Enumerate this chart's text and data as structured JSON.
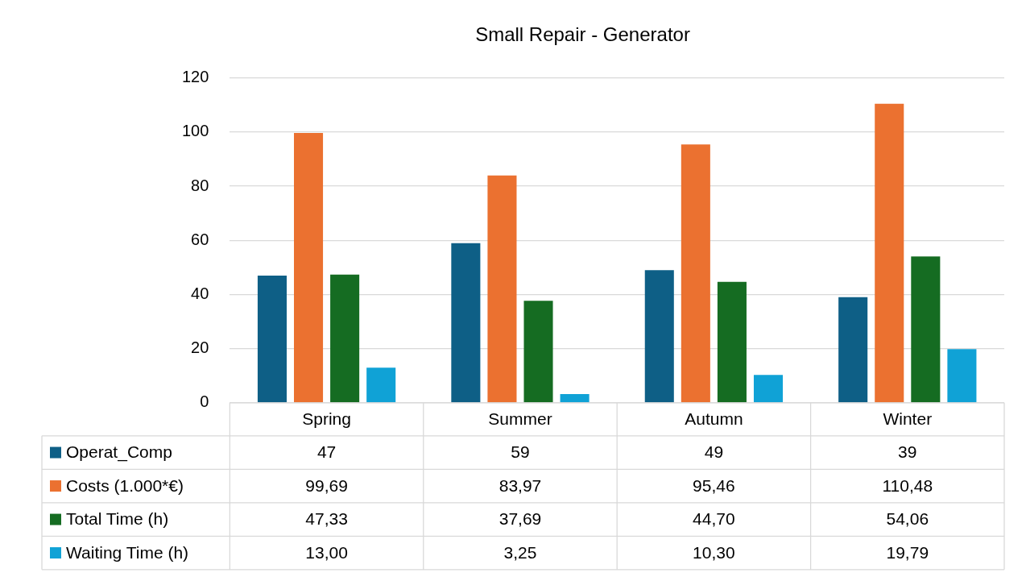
{
  "chart_data": {
    "type": "bar",
    "title": "Small Repair - Generator",
    "categories": [
      "Spring",
      "Summer",
      "Autumn",
      "Winter"
    ],
    "series": [
      {
        "name": "Operat_Comp",
        "color": "#0e5f86",
        "values": [
          47,
          59,
          49,
          39
        ],
        "value_labels": [
          "47",
          "59",
          "49",
          "39"
        ]
      },
      {
        "name": "Costs (1.000*€)",
        "color": "#eb7130",
        "values": [
          99.69,
          83.97,
          95.46,
          110.48
        ],
        "value_labels": [
          "99,69",
          "83,97",
          "95,46",
          "110,48"
        ]
      },
      {
        "name": "Total Time (h)",
        "color": "#156c22",
        "values": [
          47.33,
          37.69,
          44.7,
          54.06
        ],
        "value_labels": [
          "47,33",
          "37,69",
          "44,70",
          "54,06"
        ]
      },
      {
        "name": "Waiting Time (h)",
        "color": "#10a2d6",
        "values": [
          13,
          3.25,
          10.3,
          19.79
        ],
        "value_labels": [
          "13,00",
          "3,25",
          "10,30",
          "19,79"
        ]
      }
    ],
    "legend": "bottom left",
    "ylim": [
      0,
      120
    ],
    "yticks": [
      0,
      20,
      40,
      60,
      80,
      100,
      120
    ],
    "grid": "y"
  }
}
